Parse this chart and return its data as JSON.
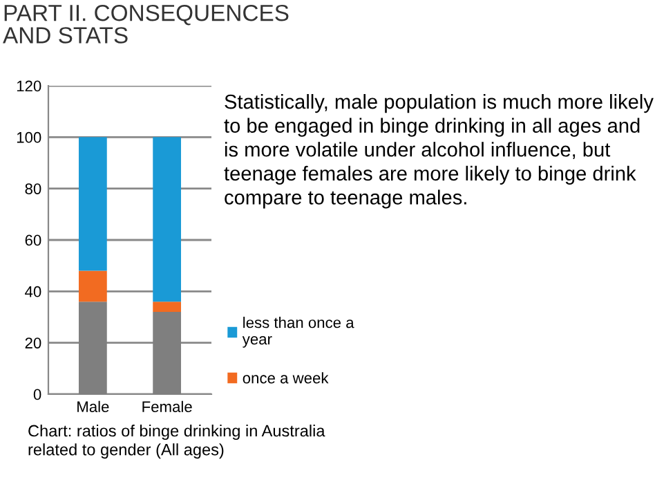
{
  "chart_data": {
    "type": "bar",
    "stacked": true,
    "title": "PART II. CONSEQUENCES\nAND STATS",
    "categories": [
      "Male",
      "Female"
    ],
    "series": [
      {
        "color": "#7f7f7f",
        "values": [
          36,
          32
        ]
      },
      {
        "name": "once a week",
        "color": "#f26b21",
        "values": [
          12,
          4
        ]
      },
      {
        "name": "less than once a year",
        "color": "#1a9ad6",
        "values": [
          52,
          64
        ]
      }
    ],
    "ylim": [
      0,
      120
    ],
    "yticks": [
      0,
      20,
      40,
      60,
      80,
      100,
      120
    ],
    "grid": "y",
    "legend": "right",
    "annotations": [
      "Statistically, male population is much more likely to be engaged in binge drinking in all ages and is more volatile under alcohol influence, but teenage females are more likely to binge drink compare to teenage males.",
      "Chart: ratios of binge drinking in Australia\nrelated to gender (All ages)"
    ]
  }
}
